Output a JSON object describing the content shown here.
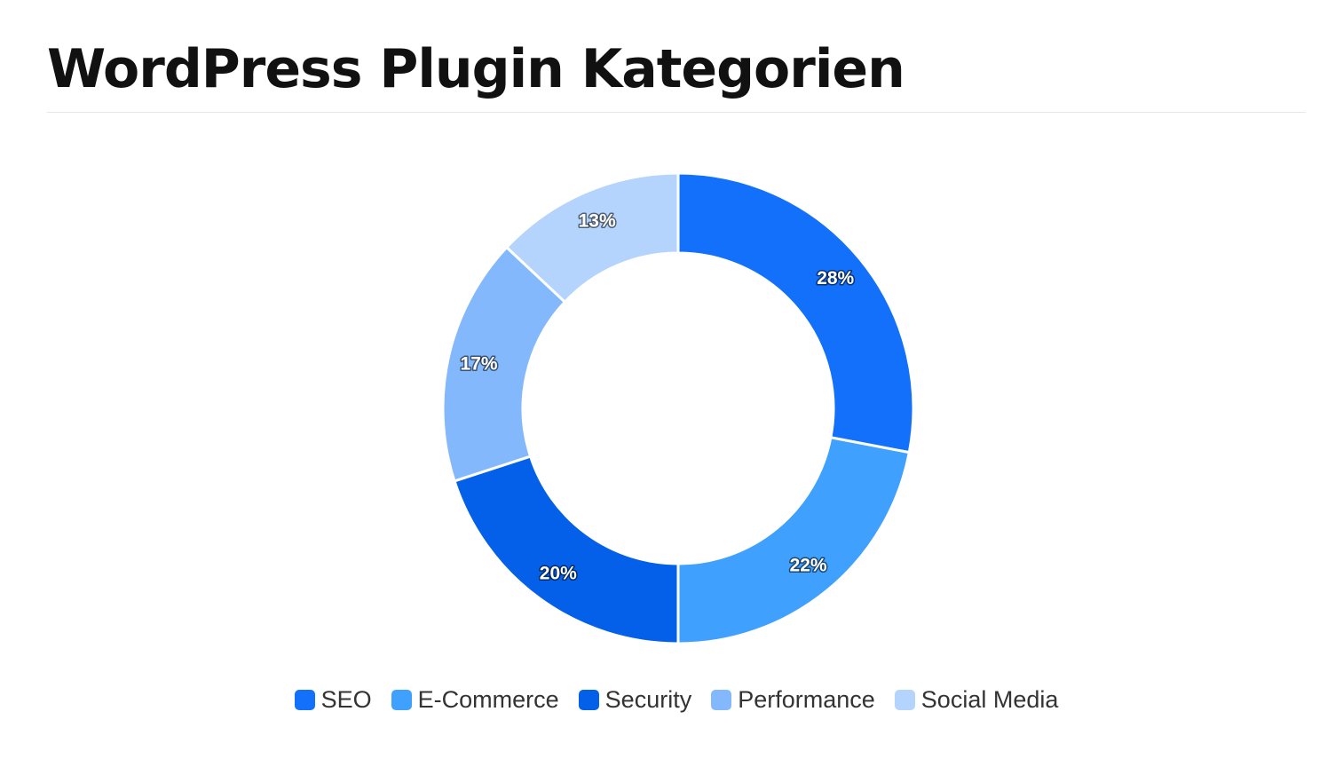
{
  "page": {
    "title": "WordPress Plugin Kategorien"
  },
  "chart_data": {
    "type": "pie",
    "variant": "donut",
    "title": "WordPress Plugin Kategorien",
    "labels": [
      "SEO",
      "E-Commerce",
      "Security",
      "Performance",
      "Social Media"
    ],
    "values": [
      28,
      22,
      20,
      17,
      13
    ],
    "value_labels": [
      "28%",
      "22%",
      "20%",
      "17%",
      "13%"
    ],
    "colors": [
      "#1270fb",
      "#3fa0fd",
      "#0460e9",
      "#84b8fc",
      "#b5d4fd"
    ],
    "legend_position": "bottom",
    "start_angle": "top, clockwise"
  }
}
